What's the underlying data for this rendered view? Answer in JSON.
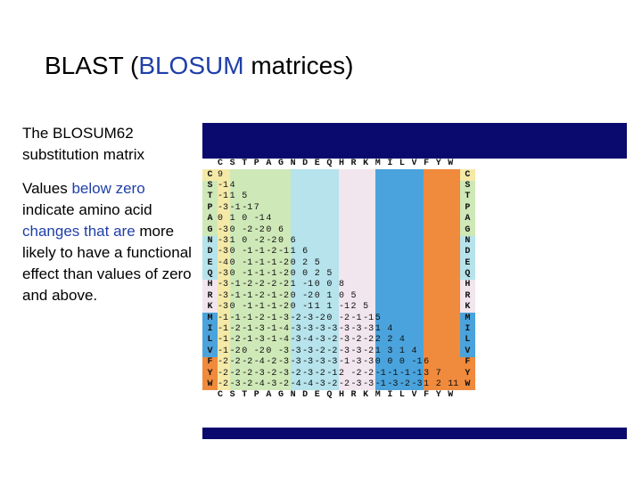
{
  "slide": {
    "title_pre": "BLAST (",
    "title_accent": "BLOSUM",
    "title_post": " matrices)",
    "colors": {
      "accent": "#1f3fa8",
      "bar": "#0a0a6e"
    }
  },
  "sidebar": {
    "para1": "The BLOSUM62 substitution matrix",
    "para2_pre": "Values ",
    "para2_blue1": "below zero",
    "para2_mid": " indicate amino acid ",
    "para2_blue2": "changes that are",
    "para2_post": " more likely to have a functional effect than values of zero and above."
  },
  "matrix": {
    "columns": [
      "C",
      "S",
      "T",
      "P",
      "A",
      "G",
      "N",
      "D",
      "E",
      "Q",
      "H",
      "R",
      "K",
      "M",
      "I",
      "L",
      "V",
      "F",
      "Y",
      "W"
    ],
    "rows": [
      {
        "label": "C",
        "values": [
          "9"
        ]
      },
      {
        "label": "S",
        "values": [
          "-1",
          "4"
        ]
      },
      {
        "label": "T",
        "values": [
          "-1",
          "1",
          "5"
        ]
      },
      {
        "label": "P",
        "values": [
          "-3",
          "-1",
          "-1",
          "7"
        ]
      },
      {
        "label": "A",
        "values": [
          "0",
          "1",
          "0",
          "-1",
          "4"
        ]
      },
      {
        "label": "G",
        "values": [
          "-3",
          "0",
          "-2",
          "-2",
          "0",
          "6"
        ]
      },
      {
        "label": "N",
        "values": [
          "-3",
          "1",
          "0",
          "-2",
          "-2",
          "0",
          "6"
        ]
      },
      {
        "label": "D",
        "values": [
          "-3",
          "0",
          "-1",
          "-1",
          "-2",
          "-1",
          "1",
          "6"
        ]
      },
      {
        "label": "E",
        "values": [
          "-4",
          "0",
          "-1",
          "-1",
          "-1",
          "-2",
          "0",
          "2",
          "5"
        ]
      },
      {
        "label": "Q",
        "values": [
          "-3",
          "0",
          "-1",
          "-1",
          "-1",
          "-2",
          "0",
          "0",
          "2",
          "5"
        ]
      },
      {
        "label": "H",
        "values": [
          "-3",
          "-1",
          "-2",
          "-2",
          "-2",
          "-2",
          "1",
          "-1",
          "0",
          "0",
          "8"
        ]
      },
      {
        "label": "R",
        "values": [
          "-3",
          "-1",
          "-1",
          "-2",
          "-1",
          "-2",
          "0",
          "-2",
          "0",
          "1",
          "0",
          "5"
        ]
      },
      {
        "label": "K",
        "values": [
          "-3",
          "0",
          "-1",
          "-1",
          "-1",
          "-2",
          "0",
          "-1",
          "1",
          "1",
          "-1",
          "2",
          "5"
        ]
      },
      {
        "label": "M",
        "values": [
          "-1",
          "-1",
          "-1",
          "-2",
          "-1",
          "-3",
          "-2",
          "-3",
          "-2",
          "0",
          "-2",
          "-1",
          "-1",
          "5"
        ]
      },
      {
        "label": "I",
        "values": [
          "-1",
          "-2",
          "-1",
          "-3",
          "-1",
          "-4",
          "-3",
          "-3",
          "-3",
          "-3",
          "-3",
          "-3",
          "-3",
          "1",
          "4"
        ]
      },
      {
        "label": "L",
        "values": [
          "-1",
          "-2",
          "-1",
          "-3",
          "-1",
          "-4",
          "-3",
          "-4",
          "-3",
          "-2",
          "-3",
          "-2",
          "-2",
          "2",
          "2",
          "4"
        ]
      },
      {
        "label": "V",
        "values": [
          "-1",
          "-2",
          "0",
          "-2",
          "0",
          "-3",
          "-3",
          "-3",
          "-2",
          "-2",
          "-3",
          "-3",
          "-2",
          "1",
          "3",
          "1",
          "4"
        ]
      },
      {
        "label": "F",
        "values": [
          "-2",
          "-2",
          "-2",
          "-4",
          "-2",
          "-3",
          "-3",
          "-3",
          "-3",
          "-3",
          "-1",
          "-3",
          "-3",
          "0",
          "0",
          "0",
          "-1",
          "6"
        ]
      },
      {
        "label": "Y",
        "values": [
          "-2",
          "-2",
          "-2",
          "-3",
          "-2",
          "-3",
          "-2",
          "-3",
          "-2",
          "-1",
          "2",
          "-2",
          "-2",
          "-1",
          "-1",
          "-1",
          "-1",
          "3",
          "7"
        ]
      },
      {
        "label": "W",
        "values": [
          "-2",
          "-3",
          "-2",
          "-4",
          "-3",
          "-2",
          "-4",
          "-4",
          "-3",
          "-2",
          "-2",
          "-3",
          "-3",
          "-1",
          "-3",
          "-2",
          "-3",
          "1",
          "2",
          "11"
        ]
      }
    ],
    "group_colors": [
      "#f5e9a8",
      "#cfe8b8",
      "#b6e3ec",
      "#f2e6ee",
      "#4aa3dc",
      "#f08a3c"
    ]
  }
}
